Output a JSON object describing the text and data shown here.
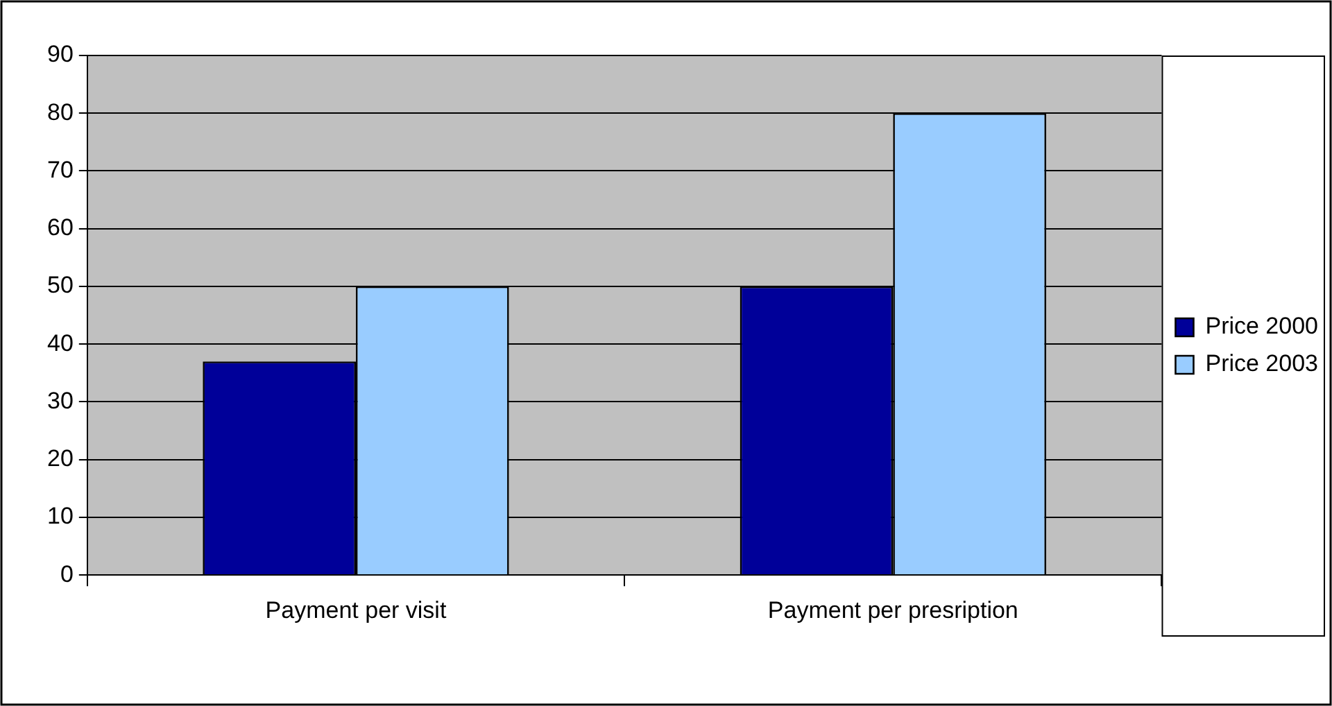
{
  "chart_data": {
    "type": "bar",
    "categories": [
      "Payment per visit",
      "Payment per presription"
    ],
    "series": [
      {
        "name": "Price 2000",
        "color": "#000099",
        "values": [
          37,
          50
        ]
      },
      {
        "name": "Price 2003",
        "color": "#99ccff",
        "values": [
          50,
          80
        ]
      }
    ],
    "ylim": [
      0,
      90
    ],
    "yticks": [
      0,
      10,
      20,
      30,
      40,
      50,
      60,
      70,
      80,
      90
    ],
    "grid": "y",
    "legend": "right"
  }
}
